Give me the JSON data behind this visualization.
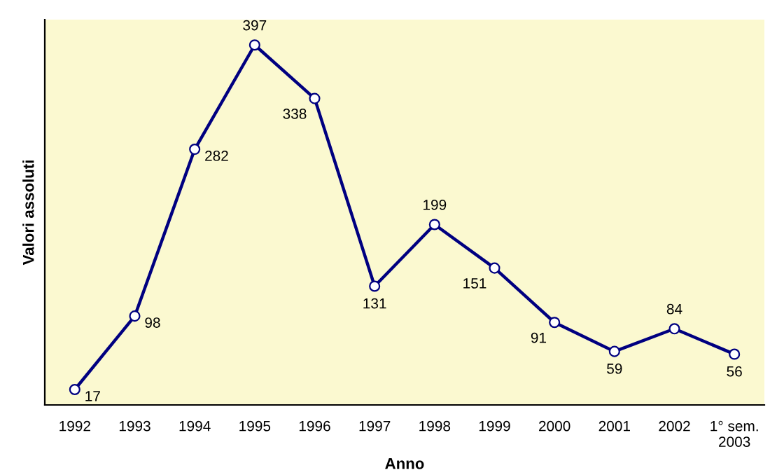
{
  "chart_data": {
    "type": "line",
    "xlabel": "Anno",
    "ylabel": "Valori assoluti",
    "categories": [
      "1992",
      "1993",
      "1994",
      "1995",
      "1996",
      "1997",
      "1998",
      "1999",
      "2000",
      "2001",
      "2002",
      "1° sem.\n2003"
    ],
    "series": [
      {
        "color": "#000080",
        "values": [
          17,
          98,
          282,
          397,
          338,
          131,
          199,
          151,
          91,
          59,
          84,
          56
        ]
      }
    ],
    "ylim": [
      0,
      425
    ],
    "tick_labels": "x",
    "data_labels": true,
    "marker": "circle",
    "line_style": "solid",
    "grid": false,
    "legend": false
  }
}
